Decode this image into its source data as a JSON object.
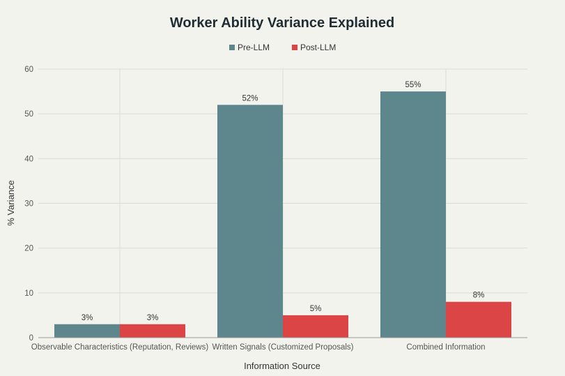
{
  "chart_data": {
    "type": "bar",
    "title": "Worker Ability Variance Explained",
    "xlabel": "Information Source",
    "ylabel": "% Variance",
    "ylim": [
      0,
      60
    ],
    "yticks": [
      0,
      10,
      20,
      30,
      40,
      50,
      60
    ],
    "grid": true,
    "legend_position": "top-center",
    "categories": [
      "Observable Characteristics (Reputation, Reviews)",
      "Written Signals (Customized Proposals)",
      "Combined Information"
    ],
    "series": [
      {
        "name": "Pre-LLM",
        "color": "#5e868d",
        "values": [
          3,
          52,
          55
        ],
        "labels": [
          "3%",
          "52%",
          "55%"
        ]
      },
      {
        "name": "Post-LLM",
        "color": "#db4545",
        "values": [
          3,
          5,
          8
        ],
        "labels": [
          "3%",
          "5%",
          "8%"
        ]
      }
    ]
  }
}
